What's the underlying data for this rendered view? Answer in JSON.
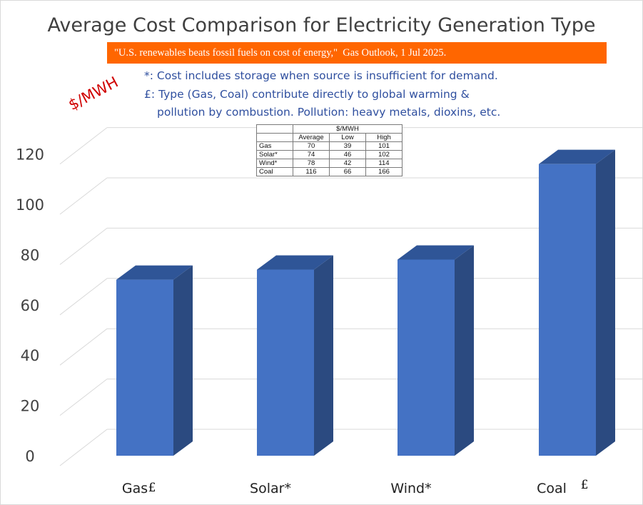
{
  "chart_data": {
    "type": "bar",
    "title": "Average Cost Comparison for Electricity Generation Type",
    "ylabel": "$/MWH",
    "xlabel": "",
    "categories": [
      "Gas",
      "Solar*",
      "Wind*",
      "Coal"
    ],
    "category_marks": [
      "£",
      "",
      "",
      "£"
    ],
    "values": [
      70,
      74,
      78,
      116
    ],
    "ylim": [
      0,
      120
    ],
    "yticks": [
      0,
      20,
      40,
      60,
      80,
      100,
      120
    ],
    "grid": true,
    "legend": "none",
    "style": "3d-column"
  },
  "source_banner": "\"U.S. renewables beats fossil fuels on cost of energy,\"  Gas Outlook, 1 Jul 2025.",
  "notes": {
    "line1": "*: Cost includes storage when source is insufficient for demand.",
    "line2": "£: Type (Gas, Coal) contribute directly to global warming &",
    "line3": "pollution by combustion. Pollution: heavy metals, dioxins, etc."
  },
  "inset_table": {
    "unit_header": "$/MWH",
    "columns": [
      "Average",
      "Low",
      "High"
    ],
    "rows": [
      {
        "name": "Gas",
        "average": "70",
        "low": "39",
        "high": "101"
      },
      {
        "name": "Solar*",
        "average": "74",
        "low": "46",
        "high": "102"
      },
      {
        "name": "Wind*",
        "average": "78",
        "low": "42",
        "high": "114"
      },
      {
        "name": "Coal",
        "average": "116",
        "low": "66",
        "high": "166"
      }
    ]
  },
  "colors": {
    "bar_front": "#4472c4",
    "bar_side": "#2b4a80",
    "bar_top": "#2f5597",
    "gridline": "#d9d9d9",
    "banner": "#ff6600",
    "note_text": "#2f4f9f",
    "unit_label": "#d00000"
  }
}
